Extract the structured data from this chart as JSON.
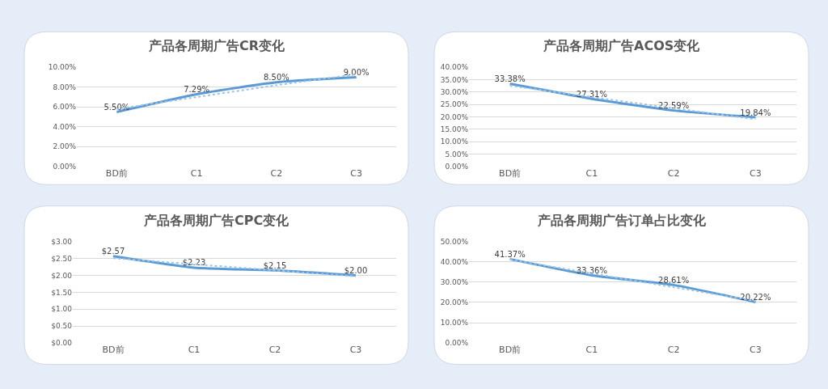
{
  "chart_data": [
    {
      "type": "line",
      "title": "产品各周期广告CR变化",
      "categories": [
        "BD前",
        "C1",
        "C2",
        "C3"
      ],
      "grid": "y",
      "marker": "none",
      "ylim": [
        0,
        10
      ],
      "yticks": [
        {
          "value": 0,
          "label": "0.00%"
        },
        {
          "value": 2,
          "label": "2.00%"
        },
        {
          "value": 4,
          "label": "4.00%"
        },
        {
          "value": 6,
          "label": "6.00%"
        },
        {
          "value": 8,
          "label": "8.00%"
        },
        {
          "value": 10,
          "label": "10.00%"
        }
      ],
      "series": [
        {
          "color": "#5b9bd5",
          "values": [
            5.5,
            7.29,
            8.5,
            9.0
          ],
          "value_labels": [
            "5.50%",
            "7.29%",
            "8.50%",
            "9.00%"
          ]
        },
        {
          "type": "line",
          "color": "#9dc3e6",
          "line_style": "dotted",
          "values": [
            5.8,
            7.0,
            8.2,
            9.3
          ]
        }
      ]
    },
    {
      "type": "line",
      "title": "产品各周期广告ACOS变化",
      "categories": [
        "BD前",
        "C1",
        "C2",
        "C3"
      ],
      "grid": "y",
      "marker": "none",
      "ylim": [
        0,
        40
      ],
      "yticks": [
        {
          "value": 0,
          "label": "0.00%"
        },
        {
          "value": 5,
          "label": "5.00%"
        },
        {
          "value": 10,
          "label": "10.00%"
        },
        {
          "value": 15,
          "label": "15.00%"
        },
        {
          "value": 20,
          "label": "20.00%"
        },
        {
          "value": 25,
          "label": "25.00%"
        },
        {
          "value": 30,
          "label": "30.00%"
        },
        {
          "value": 35,
          "label": "35.00%"
        },
        {
          "value": 40,
          "label": "40.00%"
        }
      ],
      "series": [
        {
          "color": "#5b9bd5",
          "values": [
            33.38,
            27.31,
            22.59,
            19.84
          ],
          "value_labels": [
            "33.38%",
            "27.31%",
            "22.59%",
            "19.84%"
          ]
        },
        {
          "type": "line",
          "color": "#9dc3e6",
          "line_style": "dotted",
          "values": [
            32.6,
            28.0,
            23.5,
            19.0
          ]
        }
      ]
    },
    {
      "type": "line",
      "title": "产品各周期广告CPC变化",
      "categories": [
        "BD前",
        "C1",
        "C2",
        "C3"
      ],
      "grid": "y",
      "marker": "none",
      "ylim": [
        0,
        3
      ],
      "yticks": [
        {
          "value": 0,
          "label": "$0.00"
        },
        {
          "value": 0.5,
          "label": "$0.50"
        },
        {
          "value": 1,
          "label": "$1.00"
        },
        {
          "value": 1.5,
          "label": "$1.50"
        },
        {
          "value": 2,
          "label": "$2.00"
        },
        {
          "value": 2.5,
          "label": "$2.50"
        },
        {
          "value": 3,
          "label": "$3.00"
        }
      ],
      "series": [
        {
          "color": "#5b9bd5",
          "values": [
            2.57,
            2.23,
            2.15,
            2.0
          ],
          "value_labels": [
            "$2.57",
            "$2.23",
            "$2.15",
            "$2.00"
          ]
        },
        {
          "type": "line",
          "color": "#9dc3e6",
          "line_style": "dotted",
          "values": [
            2.51,
            2.33,
            2.15,
            1.97
          ]
        }
      ]
    },
    {
      "type": "line",
      "title": "产品各周期广告订单占比变化",
      "categories": [
        "BD前",
        "C1",
        "C2",
        "C3"
      ],
      "grid": "y",
      "marker": "none",
      "ylim": [
        0,
        50
      ],
      "yticks": [
        {
          "value": 0,
          "label": "0.00%"
        },
        {
          "value": 10,
          "label": "10.00%"
        },
        {
          "value": 20,
          "label": "20.00%"
        },
        {
          "value": 30,
          "label": "30.00%"
        },
        {
          "value": 40,
          "label": "40.00%"
        },
        {
          "value": 50,
          "label": "50.00%"
        }
      ],
      "series": [
        {
          "color": "#5b9bd5",
          "values": [
            41.37,
            33.36,
            28.61,
            20.22
          ],
          "value_labels": [
            "41.37%",
            "33.36%",
            "28.61%",
            "20.22%"
          ]
        },
        {
          "type": "line",
          "color": "#9dc3e6",
          "line_style": "dotted",
          "values": [
            41.1,
            34.3,
            27.5,
            20.7
          ]
        }
      ]
    }
  ]
}
